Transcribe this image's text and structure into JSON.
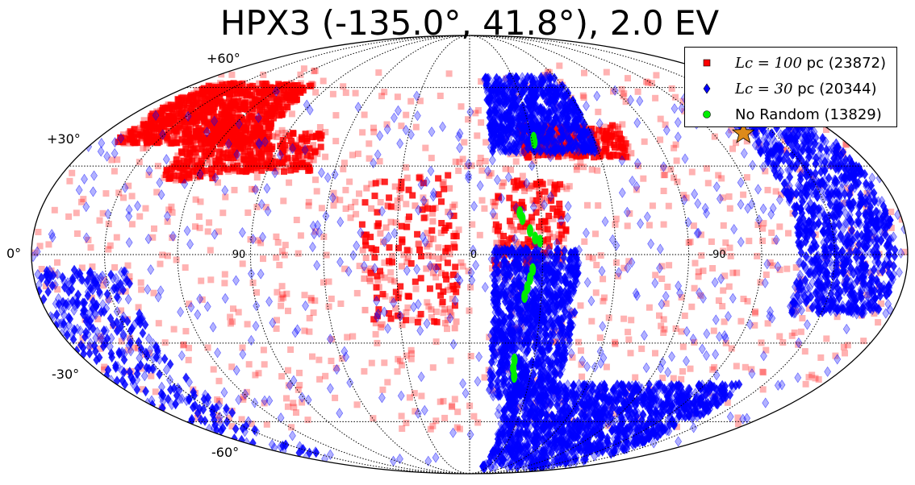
{
  "chart_data": {
    "type": "scatter",
    "projection": "mollweide",
    "title": "HPX3 (-135.0°, 41.8°), 2.0 EV",
    "lat_tick_labels": [
      "+60°",
      "+30°",
      "0°",
      "-30°",
      "-60°"
    ],
    "lon_tick_labels": [
      "90",
      "0",
      "-90"
    ],
    "lon_range": [
      -180,
      180
    ],
    "lat_range": [
      -90,
      90
    ],
    "grid": true,
    "legend_position": "top-right",
    "source": {
      "name": "HPX3",
      "lon": -135.0,
      "lat": 41.8,
      "marker": "star",
      "color": "#dd8a1a"
    },
    "series": [
      {
        "name_math": "Lc = 100",
        "name_suffix": " pc (23872)",
        "count": 23872,
        "marker": "square",
        "color": "#ff0000",
        "clusters": [
          {
            "lon": [
              100,
              170
            ],
            "lat": [
              38,
              62
            ],
            "n": 900
          },
          {
            "lon": [
              110,
              135
            ],
            "lat": [
              25,
              45
            ],
            "n": 220
          },
          {
            "lon": [
              70,
              110
            ],
            "lat": [
              28,
              42
            ],
            "n": 220
          },
          {
            "lon": [
              -25,
              -75
            ],
            "lat": [
              33,
              45
            ],
            "n": 260
          },
          {
            "lon": [
              5,
              45
            ],
            "lat": [
              -25,
              28
            ],
            "n": 180
          },
          {
            "lon": [
              -40,
              -10
            ],
            "lat": [
              -5,
              25
            ],
            "n": 160
          },
          {
            "lon": [
              -180,
              180
            ],
            "lat": [
              -65,
              70
            ],
            "n": 900
          }
        ]
      },
      {
        "name_math": "Lc = 30",
        "name_suffix": " pc (20344)",
        "count": 20344,
        "marker": "diamond",
        "color": "#0000ff",
        "clusters": [
          {
            "lon": [
              -10,
              -60
            ],
            "lat": [
              35,
              65
            ],
            "n": 700
          },
          {
            "lon": [
              -10,
              -45
            ],
            "lat": [
              -50,
              2
            ],
            "n": 900
          },
          {
            "lon": [
              -135,
              -175
            ],
            "lat": [
              -20,
              55
            ],
            "n": 1000
          },
          {
            "lon": [
              -20,
              -140
            ],
            "lat": [
              -85,
              -45
            ],
            "n": 1200
          },
          {
            "lon": [
              140,
              180
            ],
            "lat": [
              -75,
              -5
            ],
            "n": 300
          },
          {
            "lon": [
              -180,
              180
            ],
            "lat": [
              -80,
              60
            ],
            "n": 500
          }
        ]
      },
      {
        "name": "No Random (13829)",
        "count": 13829,
        "marker": "circle",
        "color": "#00ee00",
        "points": [
          [
            -31,
            40
          ],
          [
            -31,
            38.5
          ],
          [
            -21,
            14
          ],
          [
            -22,
            12
          ],
          [
            -25,
            8
          ],
          [
            -27,
            5.5
          ],
          [
            -29,
            4.5
          ],
          [
            -26,
            -5
          ],
          [
            -25,
            -8
          ],
          [
            -24,
            -11
          ],
          [
            -23,
            -14
          ],
          [
            -21,
            -36
          ],
          [
            -21,
            -39
          ],
          [
            -22,
            -42
          ]
        ]
      }
    ]
  }
}
